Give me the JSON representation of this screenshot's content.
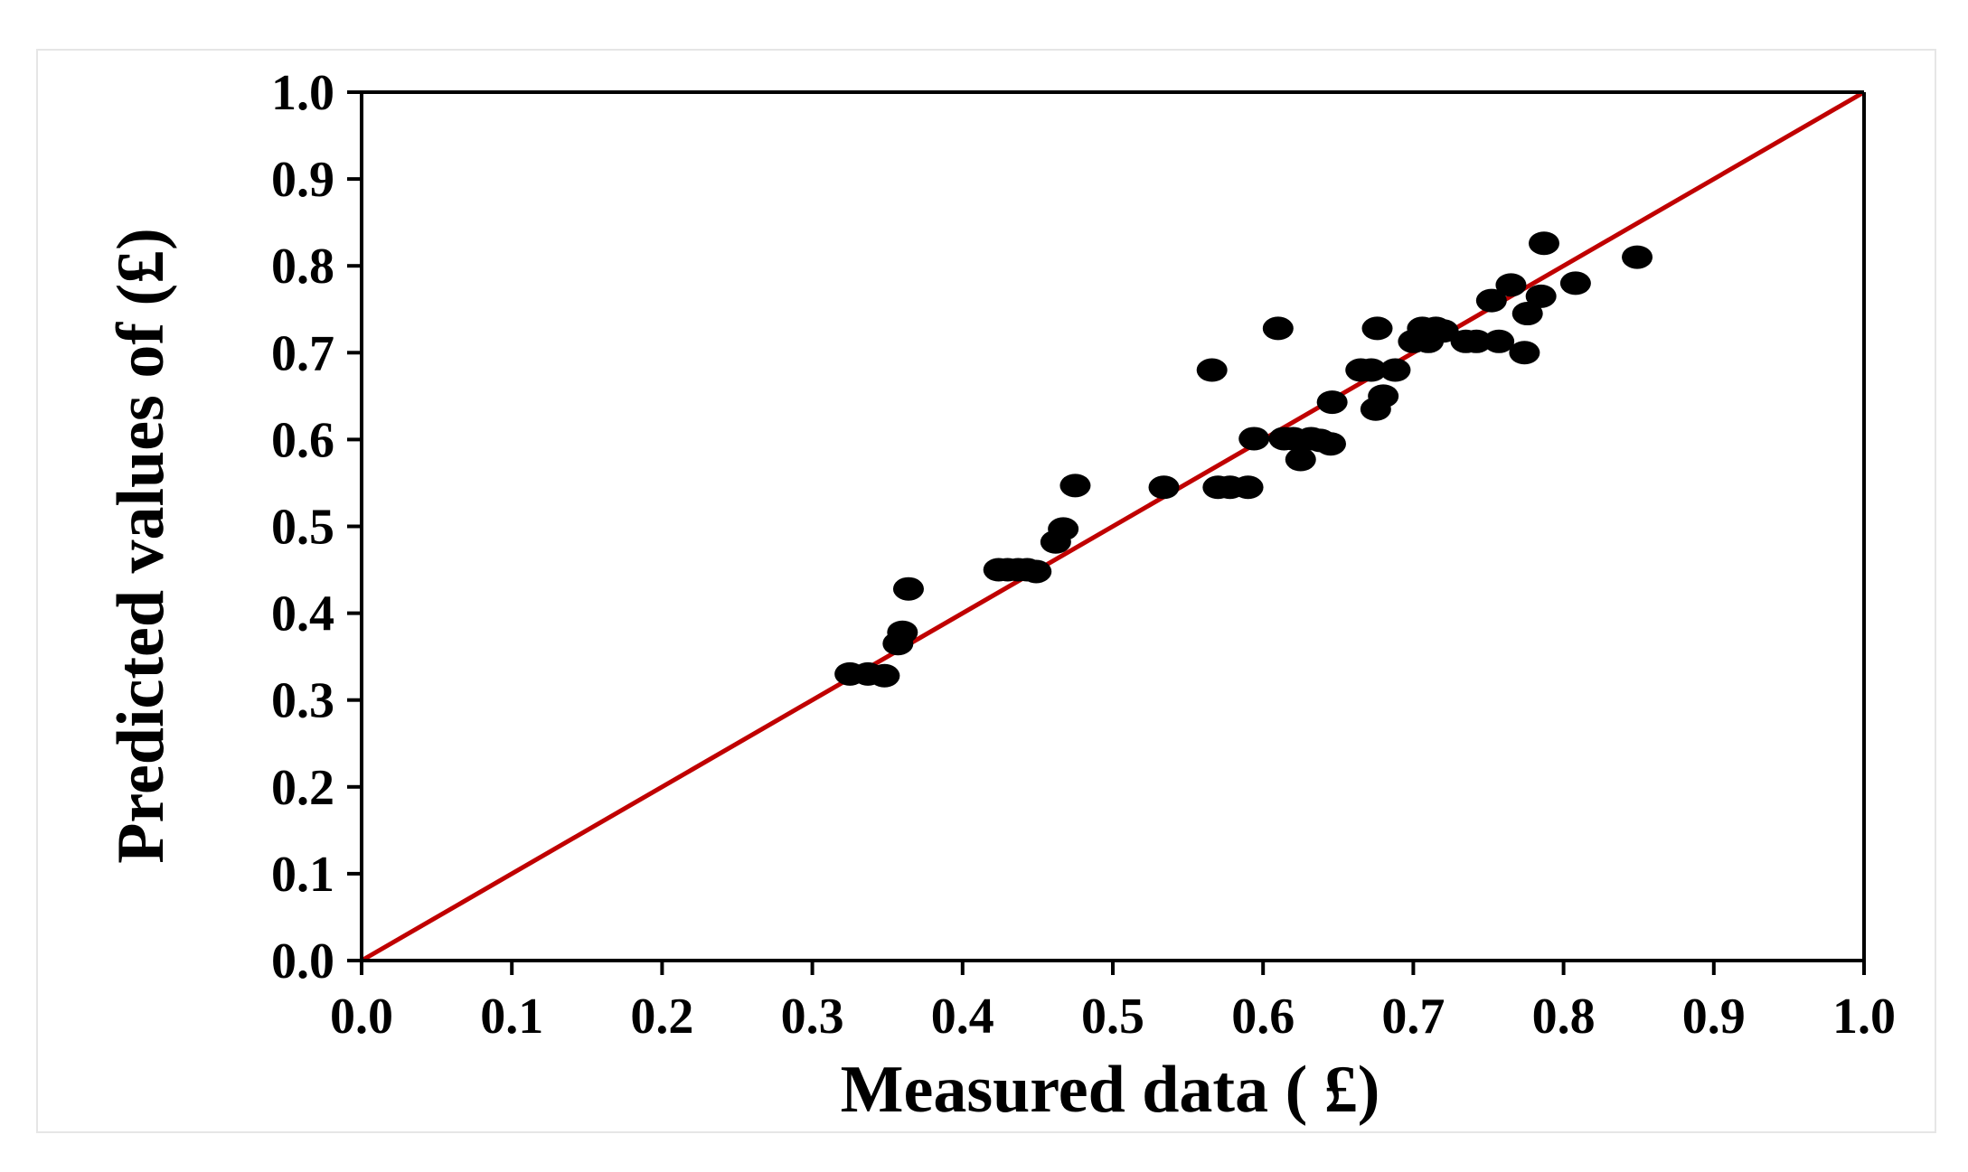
{
  "chart_data": {
    "type": "scatter",
    "title": "",
    "xlabel": "Measured data ( £)",
    "ylabel": "Predicted values of (£)",
    "xlim": [
      0.0,
      1.0
    ],
    "ylim": [
      0.0,
      1.0
    ],
    "x_ticks": [
      "0.0",
      "0.1",
      "0.2",
      "0.3",
      "0.4",
      "0.5",
      "0.6",
      "0.7",
      "0.8",
      "0.9",
      "1.0"
    ],
    "y_ticks": [
      "0.0",
      "0.1",
      "0.2",
      "0.3",
      "0.4",
      "0.5",
      "0.6",
      "0.7",
      "0.8",
      "0.9",
      "1.0"
    ],
    "grid": false,
    "legend": "none",
    "reference_line": {
      "x": [
        0.0,
        1.0
      ],
      "y": [
        0.0,
        1.0
      ],
      "color": "#c00000"
    },
    "marker_color": "#000000",
    "points": [
      {
        "x": 0.325,
        "y": 0.33
      },
      {
        "x": 0.337,
        "y": 0.33
      },
      {
        "x": 0.348,
        "y": 0.328
      },
      {
        "x": 0.357,
        "y": 0.365
      },
      {
        "x": 0.36,
        "y": 0.378
      },
      {
        "x": 0.364,
        "y": 0.428
      },
      {
        "x": 0.424,
        "y": 0.45
      },
      {
        "x": 0.43,
        "y": 0.45
      },
      {
        "x": 0.437,
        "y": 0.45
      },
      {
        "x": 0.443,
        "y": 0.45
      },
      {
        "x": 0.449,
        "y": 0.448
      },
      {
        "x": 0.462,
        "y": 0.482
      },
      {
        "x": 0.467,
        "y": 0.497
      },
      {
        "x": 0.475,
        "y": 0.547
      },
      {
        "x": 0.534,
        "y": 0.545
      },
      {
        "x": 0.566,
        "y": 0.68
      },
      {
        "x": 0.57,
        "y": 0.545
      },
      {
        "x": 0.578,
        "y": 0.545
      },
      {
        "x": 0.59,
        "y": 0.545
      },
      {
        "x": 0.594,
        "y": 0.601
      },
      {
        "x": 0.61,
        "y": 0.728
      },
      {
        "x": 0.614,
        "y": 0.601
      },
      {
        "x": 0.62,
        "y": 0.601
      },
      {
        "x": 0.625,
        "y": 0.577
      },
      {
        "x": 0.632,
        "y": 0.601
      },
      {
        "x": 0.638,
        "y": 0.599
      },
      {
        "x": 0.645,
        "y": 0.595
      },
      {
        "x": 0.646,
        "y": 0.643
      },
      {
        "x": 0.665,
        "y": 0.68
      },
      {
        "x": 0.672,
        "y": 0.68
      },
      {
        "x": 0.675,
        "y": 0.635
      },
      {
        "x": 0.676,
        "y": 0.728
      },
      {
        "x": 0.68,
        "y": 0.65
      },
      {
        "x": 0.688,
        "y": 0.68
      },
      {
        "x": 0.7,
        "y": 0.713
      },
      {
        "x": 0.706,
        "y": 0.728
      },
      {
        "x": 0.71,
        "y": 0.713
      },
      {
        "x": 0.715,
        "y": 0.728
      },
      {
        "x": 0.72,
        "y": 0.725
      },
      {
        "x": 0.735,
        "y": 0.713
      },
      {
        "x": 0.742,
        "y": 0.713
      },
      {
        "x": 0.752,
        "y": 0.76
      },
      {
        "x": 0.757,
        "y": 0.713
      },
      {
        "x": 0.765,
        "y": 0.778
      },
      {
        "x": 0.774,
        "y": 0.7
      },
      {
        "x": 0.776,
        "y": 0.745
      },
      {
        "x": 0.785,
        "y": 0.765
      },
      {
        "x": 0.787,
        "y": 0.826
      },
      {
        "x": 0.808,
        "y": 0.78
      },
      {
        "x": 0.849,
        "y": 0.81
      }
    ]
  }
}
